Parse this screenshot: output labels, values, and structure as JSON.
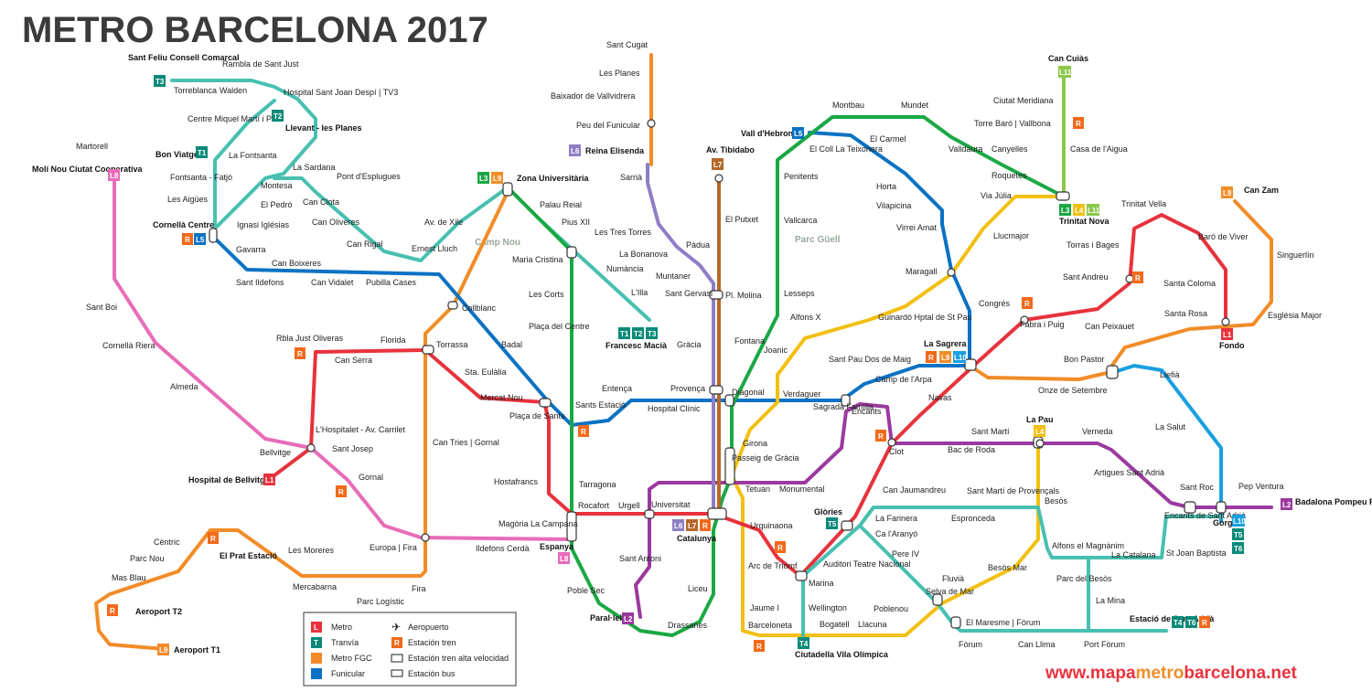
{
  "title": "METRO BARCELONA 2017",
  "website": {
    "part1": "www.mapa",
    "part2": "metro",
    "part3": "barcelona.net"
  },
  "colors": {
    "L1": "#e8323c",
    "L2": "#9b3a9e",
    "L3": "#1aa844",
    "L4": "#f2c012",
    "L5": "#0a72c4",
    "L6": "#8f7ec6",
    "L7": "#b4692a",
    "L8": "#e86cb8",
    "L9": "#f28c28",
    "L10": "#18a0e0",
    "L11": "#8cc84b",
    "TRAM": "#48c0b0",
    "FGC": "#f28c28",
    "badge_T": "#0a8a78",
    "badge_R": "#f26a1b"
  },
  "parks": [
    "Camp Nou",
    "Parc Güell"
  ],
  "stations": [
    "Sant Feliu Consell Comarcal",
    "Rambla de Sant Just",
    "Torreblanca",
    "Walden",
    "Hospital Sant Joan Despí | TV3",
    "Centre Miquel Martí i Pol",
    "Llevant - les Planes",
    "Bon Viatge",
    "La Fontsanta",
    "Fontsanta - Fatjó",
    "La Sardana",
    "Pont d'Esplugues",
    "Montesa",
    "El Pedró",
    "Can Clota",
    "Les Aigües",
    "Ignasi Iglésias",
    "Can Oliveres",
    "Cornellà Centre",
    "Can Rigal",
    "Ernest Lluch",
    "Av. de Xile",
    "Gavarra",
    "Can Boixeres",
    "Sant Ildefons",
    "Can Vidalet",
    "Pubilla Cases",
    "Collblanc",
    "Martorell",
    "Molí Nou Ciutat Cooperativa",
    "Zona Universitària",
    "Palau Reial",
    "Pius XII",
    "Maria Cristina",
    "Numància",
    "L'Illa",
    "Francesc Macià",
    "Les Corts",
    "Plaça del Centre",
    "Sant Boi",
    "Cornellà Riera",
    "Almeda",
    "Rbla Just Oliveras",
    "Florida",
    "Can Serra",
    "Torrassa",
    "Badal",
    "Sta. Eulàlia",
    "Mercat Nou",
    "Plaça de Sants",
    "Sants Estació",
    "L'Hospitalet - Av. Carrilet",
    "Sant Josep",
    "Bellvitge",
    "Hospital de Bellvitge",
    "Gornal",
    "Can Tries | Gornal",
    "Hostafrancs",
    "Tarragona",
    "Rocafort",
    "Urgell",
    "Espanya",
    "Magòria La Campana",
    "Ildefons Cerdà",
    "Europa | Fira",
    "Les Moreres",
    "El Prat Estació",
    "Cèntric",
    "Parc Nou",
    "Mas Blau",
    "Aeroport T2",
    "Aeroport T1",
    "Mercabarna",
    "Parc Logístic",
    "Fira",
    "Poble Sec",
    "Sant Antoni",
    "Paral·lel",
    "Drassanes",
    "Liceu",
    "Universitat",
    "Catalunya",
    "Urquinaona",
    "Arc de Triomf",
    "Jaume I",
    "Barceloneta",
    "Ciutadella Vila Olímpica",
    "Marina",
    "Wellington",
    "Bogatell",
    "Llacuna",
    "Poblenou",
    "Selva de Mar",
    "Sant Cugat",
    "Les Planes",
    "Baixador de Vallvidrera",
    "Peu del Funicular",
    "Reina Elisenda",
    "Sarrià",
    "Les Tres Torres",
    "La Bonanova",
    "Muntaner",
    "Pàdua",
    "Av. Tibidabo",
    "El Putxet",
    "Sant Gervasi",
    "Pl. Molina",
    "Gràcia",
    "Fontana",
    "Provença",
    "Diagonal",
    "Entença",
    "Hospital Clínic",
    "Girona",
    "Passeig de Gràcia",
    "Tetuan",
    "Monumental",
    "Verdaguer",
    "Sagrada Família",
    "Encants",
    "Vall d'Hebron",
    "Montbau",
    "Mundet",
    "El Coll La Teixonera",
    "El Carmel",
    "Valldaura",
    "Canyelles",
    "Roquetes",
    "Horta",
    "Penitents",
    "Vallcarca",
    "Lesseps",
    "Vilapicina",
    "Virrei Amat",
    "Maragall",
    "Congrés",
    "Alfons X",
    "Joanic",
    "Guinardó Hptal de St Pau",
    "Sant Pau Dos de Maig",
    "Camp de l'Arpa",
    "Navas",
    "La Sagrera",
    "Fabra i Puig",
    "Sant Andreu",
    "Torras i Bages",
    "Trinitat Vella",
    "Baró de Viver",
    "Santa Coloma",
    "Fondo",
    "Can Zam",
    "Singuerlín",
    "Església Major",
    "Can Peixauet",
    "Santa Rosa",
    "Bon Pastor",
    "Onze de Setembre",
    "Llefià",
    "La Salut",
    "Can Cuiàs",
    "Ciutat Meridiana",
    "Torre Baró | Vallbona",
    "Casa de l'Aigua",
    "Via Júlia",
    "Llucmajor",
    "Trinitat Nova",
    "Clot",
    "Bac de Roda",
    "Sant Martí",
    "La Pau",
    "Verneda",
    "Artigues Sant Adrià",
    "Sant Roc",
    "Gorg",
    "Pep Ventura",
    "Badalona Pompeu Fabra",
    "Glòries",
    "Can Jaumandreu",
    "Sant Martí de Provençals",
    "Besòs",
    "La Farinera",
    "Espronceda",
    "Ca l'Aranyó",
    "Pere IV",
    "Auditori Teatre Nacional",
    "Fluvià",
    "Besòs Mar",
    "El Maresme | Fòrum",
    "Fòrum",
    "Can Llima",
    "Port Fòrum",
    "Estació de Sant Adrià",
    "Alfons el Magnànim",
    "La Catalana",
    "Parc del Besòs",
    "La Mina",
    "Encants de Sant Adrià",
    "St Joan Baptista"
  ],
  "legend": {
    "metro": "Metro",
    "tranvia": "Tranvía",
    "fgc": "Metro FGC",
    "funicular": "Funicular",
    "aeropuerto": "Aeropuerto",
    "tren": "Estación tren",
    "alta_velocidad": "Estación tren alta velocidad",
    "bus": "Estación bus"
  },
  "badges": {
    "L1": "L1",
    "L2": "L2",
    "L3": "L3",
    "L4": "L4",
    "L5": "L5",
    "L6": "L6",
    "L7": "L7",
    "L8": "L8",
    "L9": "L9",
    "L10": "L10",
    "L11": "L11",
    "T1": "T1",
    "T2": "T2",
    "T3": "T3",
    "T4": "T4",
    "T5": "T5",
    "T6": "T6",
    "R": "R"
  }
}
